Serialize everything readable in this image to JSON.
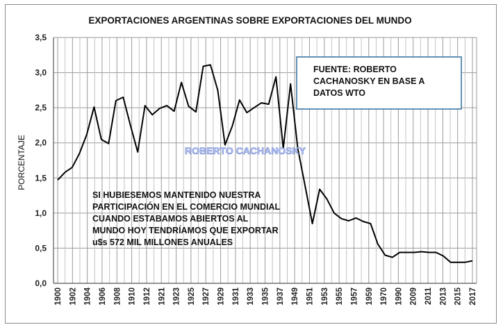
{
  "chart_data": {
    "type": "line",
    "title": "EXPORTACIONES ARGENTINAS SOBRE EXPORTACIONES DEL MUNDO",
    "ylabel": "PORCENTAJE",
    "xlabel": "",
    "ylim": [
      0,
      3.5
    ],
    "y_ticks": [
      "0,0",
      "0,5",
      "1,0",
      "1,5",
      "2,0",
      "2,5",
      "3,0",
      "3,5"
    ],
    "x_tick_labels": [
      "1900",
      "1902",
      "1904",
      "1906",
      "1908",
      "1910",
      "1912",
      "1921",
      "1923",
      "1925",
      "1927",
      "1929",
      "1931",
      "1933",
      "1935",
      "1937",
      "1949",
      "1951",
      "1953",
      "1955",
      "1957",
      "1959",
      "1970",
      "1990",
      "2009",
      "2011",
      "2013",
      "2015",
      "2017"
    ],
    "grid": true,
    "series": [
      {
        "color": "#000000",
        "values": [
          1.47,
          1.58,
          1.65,
          1.85,
          2.12,
          2.51,
          2.05,
          1.99,
          2.6,
          2.65,
          2.25,
          1.87,
          2.53,
          2.4,
          2.49,
          2.53,
          2.45,
          2.86,
          2.52,
          2.44,
          3.09,
          3.11,
          2.75,
          1.97,
          2.24,
          2.61,
          2.43,
          2.5,
          2.57,
          2.55,
          2.94,
          1.92,
          2.84,
          1.92,
          1.39,
          0.85,
          1.34,
          1.2,
          1.0,
          0.92,
          0.89,
          0.93,
          0.88,
          0.85,
          0.56,
          0.4,
          0.37,
          0.44,
          0.44,
          0.44,
          0.45,
          0.44,
          0.44,
          0.39,
          0.3,
          0.3,
          0.3,
          0.32
        ]
      }
    ],
    "annotations": {
      "source_box": [
        "FUENTE: ROBERTO",
        "CACHANOSKY EN BASE A",
        "DATOS WTO"
      ],
      "note": [
        "SI HUBIESEMOS MANTENIDO NUESTRA",
        "PARTICIPACIÓN EN EL COMERCIO MUNDIAL",
        "CUANDO ESTABAMOS ABIERTOS AL",
        "MUNDO HOY TENDRÍAMOS QUE EXPORTAR",
        "u$s 572 MIL  MILLONES ANUALES"
      ],
      "watermark": "ROBERTO CACHANOSKY"
    },
    "colors": {
      "source_box_border": "#2e6e9e",
      "watermark": "#6f86d6",
      "line": "#000000"
    }
  }
}
